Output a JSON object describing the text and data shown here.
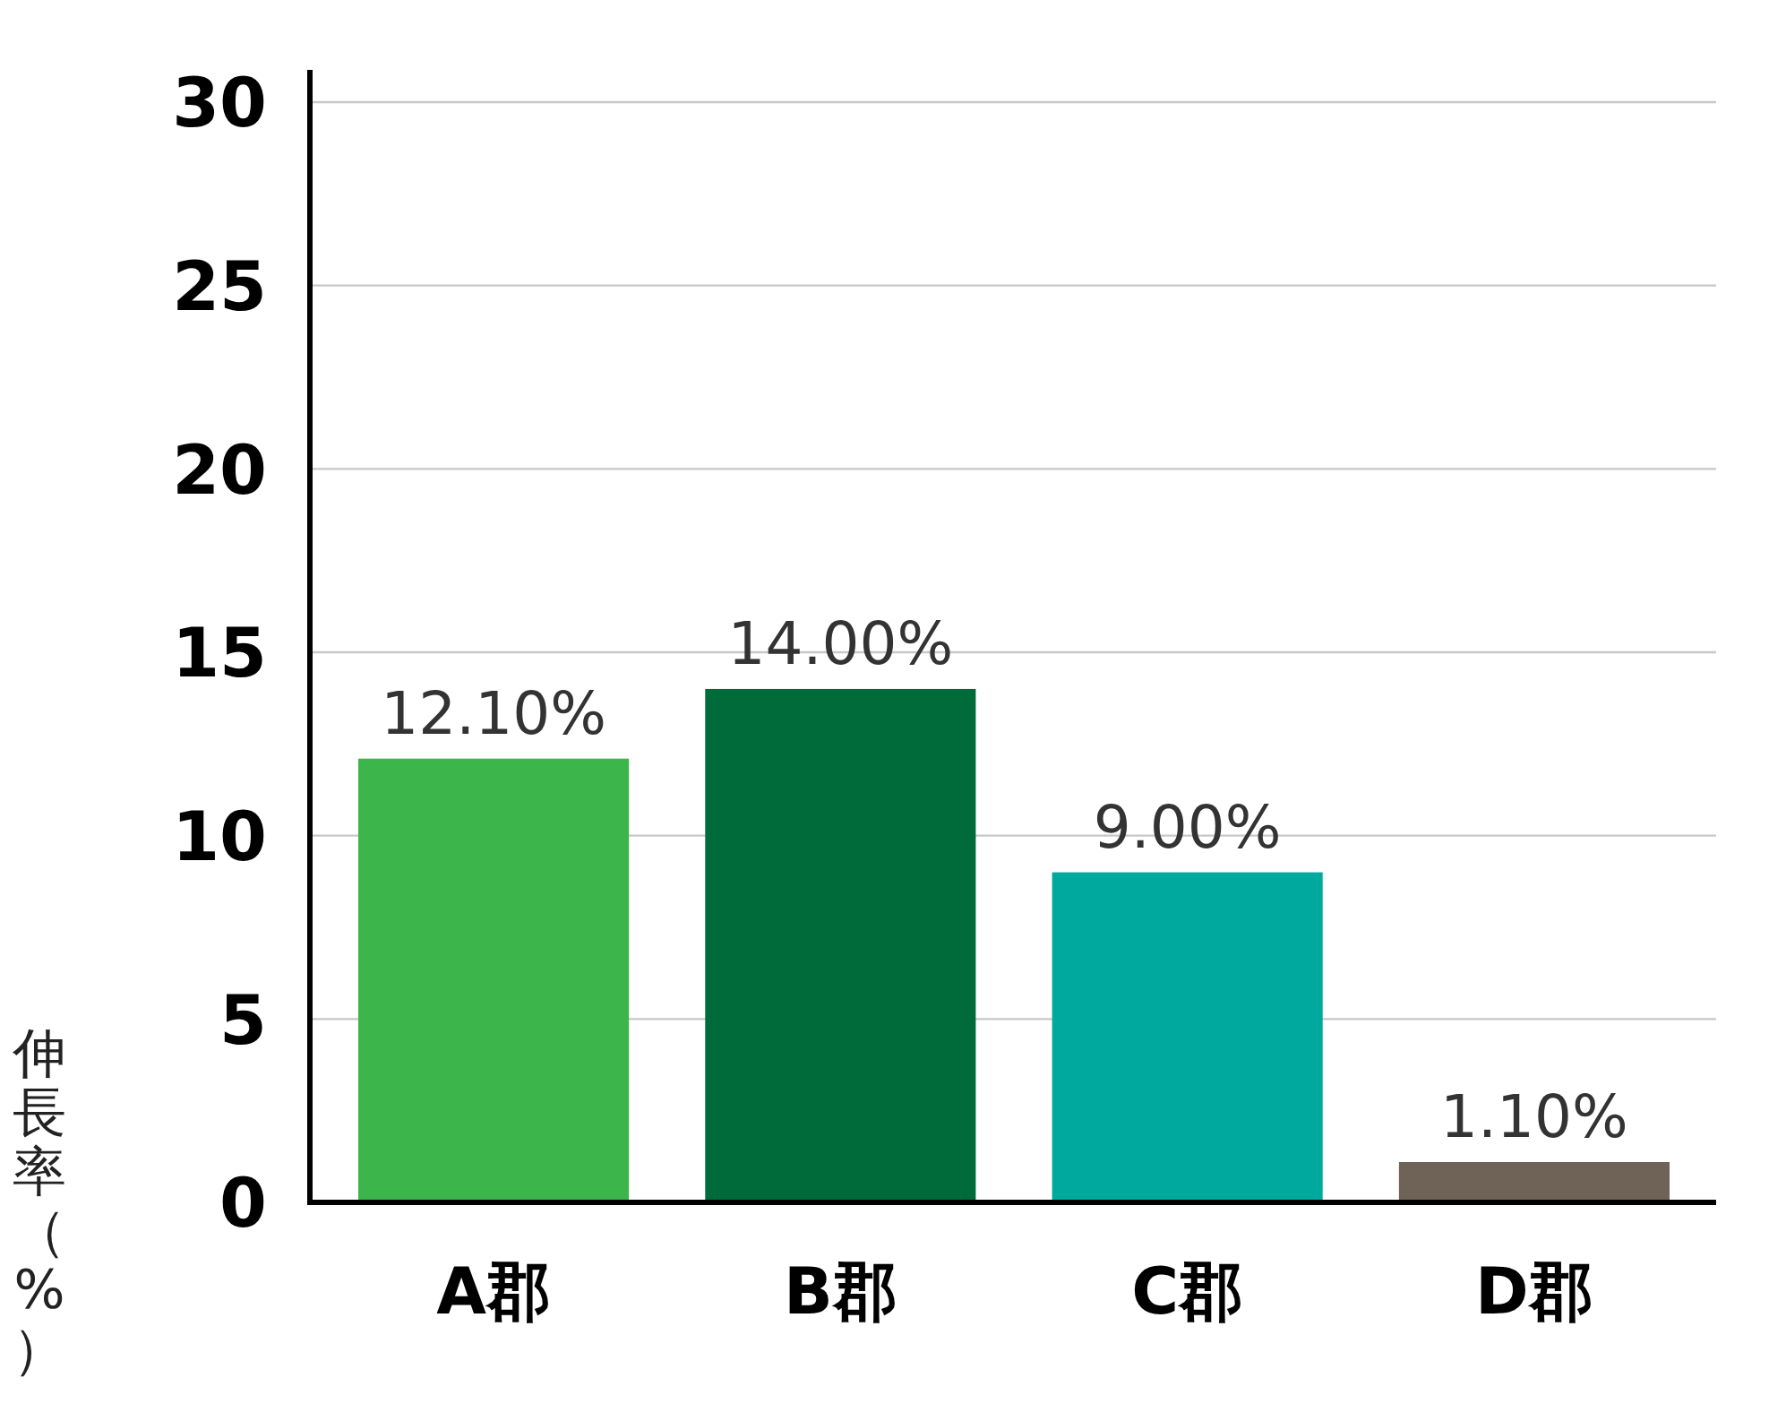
{
  "chart_data": {
    "type": "bar",
    "ylabel": "伸長率（%）",
    "categories": [
      "A郡",
      "B郡",
      "C郡",
      "D郡"
    ],
    "values": [
      12.1,
      14,
      9,
      1.1
    ],
    "colors": [
      "#3cb54a",
      "#006b3a",
      "#00a99d",
      "#6f6358"
    ],
    "value_labels": [
      "12.10%",
      "14.00%",
      "9.00%",
      "1.10%"
    ],
    "ylim": [
      0,
      30
    ],
    "yticks": [
      0,
      5,
      10,
      15,
      20,
      25,
      30
    ],
    "grid": "y"
  }
}
